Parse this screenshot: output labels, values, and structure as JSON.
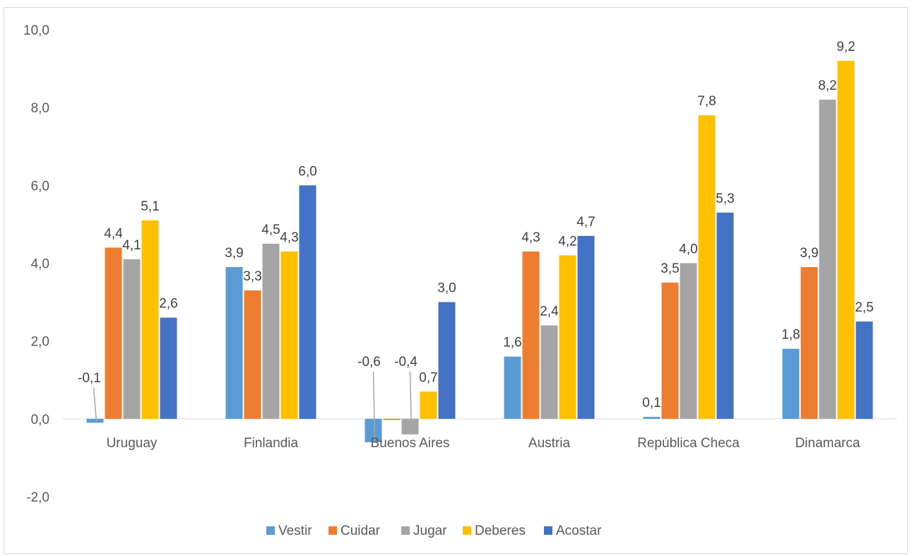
{
  "chart_data": {
    "type": "bar",
    "categories": [
      "Uruguay",
      "Finlandia",
      "Buenos Aires",
      "Austria",
      "República Checa",
      "Dinamarca"
    ],
    "series": [
      {
        "name": "Vestir",
        "color": "#5b9bd5",
        "values": [
          -0.1,
          3.9,
          -0.6,
          1.6,
          0.05,
          1.8
        ],
        "labels": [
          "-0,1",
          "3,9",
          "-0,6",
          "1,6",
          "0,1",
          "1,8"
        ]
      },
      {
        "name": "Cuidar",
        "color": "#ed7d31",
        "values": [
          4.4,
          3.3,
          -0.03,
          4.3,
          3.5,
          3.9
        ],
        "labels": [
          "4,4",
          "3,3",
          "",
          "4,3",
          "3,5",
          "3,9"
        ]
      },
      {
        "name": "Jugar",
        "color": "#a5a5a5",
        "values": [
          4.1,
          4.5,
          -0.4,
          2.4,
          4.0,
          8.2
        ],
        "labels": [
          "4,1",
          "4,5",
          "-0,4",
          "2,4",
          "4,0",
          "8,2"
        ]
      },
      {
        "name": "Deberes",
        "color": "#ffc000",
        "values": [
          5.1,
          4.3,
          0.7,
          4.2,
          7.8,
          9.2
        ],
        "labels": [
          "5,1",
          "4,3",
          "0,7",
          "4,2",
          "7,8",
          "9,2"
        ]
      },
      {
        "name": "Acostar",
        "color": "#4472c4",
        "values": [
          2.6,
          6.0,
          3.0,
          4.7,
          5.3,
          2.5
        ],
        "labels": [
          "2,6",
          "6,0",
          "3,0",
          "4,7",
          "5,3",
          "2,5"
        ]
      }
    ],
    "ylim": [
      -2,
      10
    ],
    "yticks": [
      "10,0",
      "8,0",
      "6,0",
      "4,0",
      "2,0",
      "0,0",
      "-2,0"
    ],
    "ytick_values": [
      10,
      8,
      6,
      4,
      2,
      0,
      -2
    ],
    "grid": false,
    "legend": "bottom",
    "title": "",
    "xlabel": "",
    "ylabel": ""
  }
}
